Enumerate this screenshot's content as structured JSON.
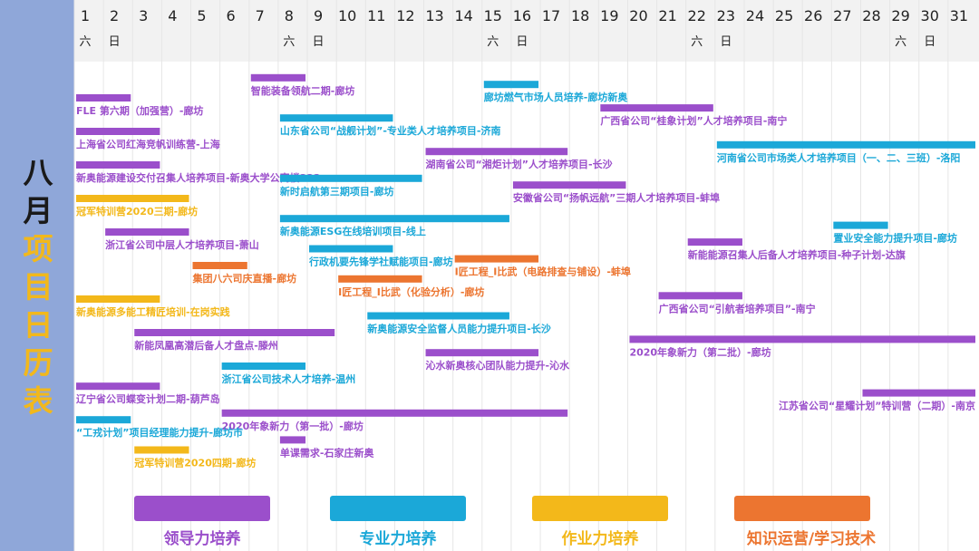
{
  "title": {
    "chars": [
      "八",
      "月",
      "项",
      "目",
      "日",
      "历",
      "表"
    ]
  },
  "colors": {
    "leadership": "#9b4fcb",
    "professional": "#1ba8d8",
    "operations": "#f3b81a",
    "knowledge": "#ec7530",
    "grid": "#e6e6e6"
  },
  "legend": [
    {
      "label": "领导力培养",
      "category": "leadership"
    },
    {
      "label": "专业力培养",
      "category": "professional"
    },
    {
      "label": "作业力培养",
      "category": "operations"
    },
    {
      "label": "知识运营/学习技术",
      "category": "knowledge"
    }
  ],
  "chart_data": {
    "type": "gantt",
    "days": [
      1,
      2,
      3,
      4,
      5,
      6,
      7,
      8,
      9,
      10,
      11,
      12,
      13,
      14,
      15,
      16,
      17,
      18,
      19,
      20,
      21,
      22,
      23,
      24,
      25,
      26,
      27,
      28,
      29,
      30,
      31
    ],
    "weekday_labels": [
      {
        "day": 1,
        "text": "六"
      },
      {
        "day": 2,
        "text": "日"
      },
      {
        "day": 8,
        "text": "六"
      },
      {
        "day": 9,
        "text": "日"
      },
      {
        "day": 15,
        "text": "六"
      },
      {
        "day": 16,
        "text": "日"
      },
      {
        "day": 22,
        "text": "六"
      },
      {
        "day": 23,
        "text": "日"
      },
      {
        "day": 29,
        "text": "六"
      },
      {
        "day": 30,
        "text": "日"
      }
    ],
    "tasks": [
      {
        "label": "FLE 第六期（加强营）-廊坊",
        "category": "leadership",
        "start": 1,
        "end": 2,
        "row": 0
      },
      {
        "label": "上海省公司红海竞帆训练营-上海",
        "category": "leadership",
        "start": 1,
        "end": 3,
        "row": 1
      },
      {
        "label": "新奥能源建设交付召集人培养项目-新奥大学公寓楼322",
        "category": "leadership",
        "start": 1,
        "end": 3,
        "row": 2
      },
      {
        "label": "冠军特训营2020三期-廊坊",
        "category": "operations",
        "start": 1,
        "end": 4,
        "row": 3
      },
      {
        "label": "浙江省公司中层人才培养项目-萧山",
        "category": "leadership",
        "start": 2,
        "end": 4,
        "row": 4
      },
      {
        "label": "集团八六司庆直播-廊坊",
        "category": "knowledge",
        "start": 5,
        "end": 6,
        "row": 5
      },
      {
        "label": "新奥能源多能工精匠培训-在岗实践",
        "category": "operations",
        "start": 1,
        "end": 3,
        "row": 6
      },
      {
        "label": "新能凤凰高潜后备人才盘点-滕州",
        "category": "leadership",
        "start": 3,
        "end": 9,
        "row": 7
      },
      {
        "label": "浙江省公司技术人才培养-温州",
        "category": "professional",
        "start": 6,
        "end": 8,
        "row": 8
      },
      {
        "label": "辽宁省公司蝶变计划二期-葫芦岛",
        "category": "leadership",
        "start": 1,
        "end": 3,
        "row": 8.6
      },
      {
        "label": "2020年象新力（第一批）-廊坊",
        "category": "leadership",
        "start": 6,
        "end": 17,
        "row": 9.4
      },
      {
        "label": "“工戎计划”项目经理能力提升-廊坊市",
        "category": "professional",
        "start": 1,
        "end": 2,
        "row": 9.6
      },
      {
        "label": "冠军特训营2020四期-廊坊",
        "category": "operations",
        "start": 3,
        "end": 4,
        "row": 10.5
      },
      {
        "label": "单课需求-石家庄新奥",
        "category": "leadership",
        "start": 8,
        "end": 8,
        "row": 10.2
      },
      {
        "label": "智能装备领航二期-廊坊",
        "category": "leadership",
        "start": 7,
        "end": 8,
        "row": -0.6
      },
      {
        "label": "山东省公司“战舰计划”-专业类人才培养项目-济南",
        "category": "professional",
        "start": 8,
        "end": 11,
        "row": 0.6
      },
      {
        "label": "新时启航第三期项目-廊坊",
        "category": "professional",
        "start": 8,
        "end": 12,
        "row": 2.4
      },
      {
        "label": "新奥能源ESG在线培训项目-线上",
        "category": "professional",
        "start": 8,
        "end": 15,
        "row": 3.6
      },
      {
        "label": "行政机要先锋学社赋能项目-廊坊",
        "category": "professional",
        "start": 9,
        "end": 11,
        "row": 4.5
      },
      {
        "label": "I匠工程_I比武（化验分析）-廊坊",
        "category": "knowledge",
        "start": 10,
        "end": 12,
        "row": 5.4
      },
      {
        "label": "新奥能源安全监督人员能力提升项目-长沙",
        "category": "professional",
        "start": 11,
        "end": 15,
        "row": 6.5
      },
      {
        "label": "沁水新奥核心团队能力提升-沁水",
        "category": "leadership",
        "start": 13,
        "end": 16,
        "row": 7.6
      },
      {
        "label": "廊坊燃气市场人员培养-廊坊新奥",
        "category": "professional",
        "start": 15,
        "end": 16,
        "row": -0.4
      },
      {
        "label": "湖南省公司“湘炬计划”人才培养项目-长沙",
        "category": "leadership",
        "start": 13,
        "end": 17,
        "row": 1.6
      },
      {
        "label": "安徽省公司“扬帆远航”三期人才培养项目-蚌埠",
        "category": "leadership",
        "start": 16,
        "end": 19,
        "row": 2.6
      },
      {
        "label": "I匠工程_I比武（电路排查与铺设）-蚌埠",
        "category": "knowledge",
        "start": 14,
        "end": 16,
        "row": 4.8
      },
      {
        "label": "广西省公司“桂象计划”人才培养项目-南宁",
        "category": "leadership",
        "start": 19,
        "end": 22,
        "row": 0.3
      },
      {
        "label": "河南省公司市场类人才培养项目（一、二、三班）-洛阳",
        "category": "professional",
        "start": 23,
        "end": 31,
        "row": 1.4
      },
      {
        "label": "新能能源召集人后备人才培养项目-种子计划-达旗",
        "category": "leadership",
        "start": 22,
        "end": 23,
        "row": 4.3
      },
      {
        "label": "置业安全能力提升项目-廊坊",
        "category": "professional",
        "start": 27,
        "end": 28,
        "row": 3.8
      },
      {
        "label": "广西省公司“引航者培养项目”-南宁",
        "category": "leadership",
        "start": 21,
        "end": 23,
        "row": 5.9
      },
      {
        "label": "2020年象新力（第二批）-廊坊",
        "category": "leadership",
        "start": 20,
        "end": 31,
        "row": 7.2
      },
      {
        "label": "江苏省公司“星耀计划”特训营（二期）-南京",
        "category": "leadership",
        "start": 28,
        "end": 31,
        "row": 8.8
      }
    ]
  }
}
